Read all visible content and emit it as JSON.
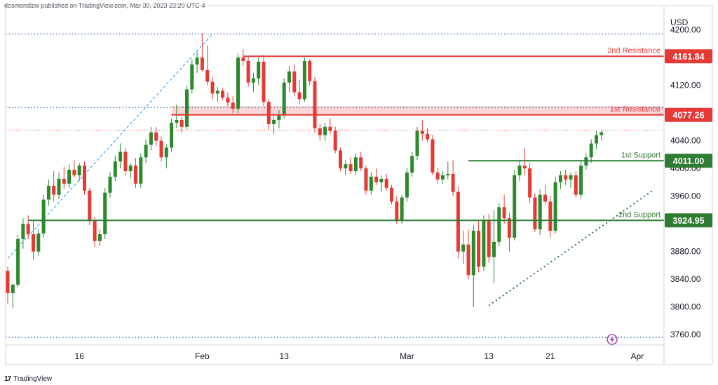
{
  "header": {
    "attribution": "desmondlzw published on TradingView.com, Mar 30, 2023 23:20 UTC-4"
  },
  "footer": {
    "logo": "17",
    "brand": "TradingView"
  },
  "colors": {
    "up": "#2b8a2b",
    "down": "#e53935",
    "resistance": "#e53935",
    "support": "#2e7d32",
    "trendline": "#2196f3",
    "zone": "#f8c8cc"
  },
  "chart_data": {
    "type": "candlestick",
    "currency": "USD",
    "ylim": [
      3745,
      4235
    ],
    "y_ticks": [
      3760,
      3800,
      3840,
      3880,
      3920,
      3960,
      4000,
      4040,
      4080,
      4120,
      4160,
      4200
    ],
    "y_tick_labels": [
      "3760.00",
      "3800.00",
      "3840.00",
      "3880.00",
      "",
      "3960.00",
      "4000.00",
      "4040.00",
      "",
      "4120.00",
      "",
      "4200.00"
    ],
    "x_ticks": [
      {
        "label": "16",
        "bar": 14
      },
      {
        "label": "Feb",
        "bar": 38
      },
      {
        "label": "13",
        "bar": 54
      },
      {
        "label": "Mar",
        "bar": 78
      },
      {
        "label": "13",
        "bar": 94
      },
      {
        "label": "21",
        "bar": 106
      },
      {
        "label": "Apr",
        "bar": 123
      }
    ],
    "levels": [
      {
        "name": "2nd Resistance",
        "value": 4161.84,
        "label": "4161.84",
        "kind": "resistance",
        "from_bar": 46
      },
      {
        "name": "1st Resistance",
        "value": 4077.26,
        "label": "4077.26",
        "kind": "resistance",
        "from_bar": 32,
        "zone_top": 4090
      },
      {
        "name": "1st Support",
        "value": 4011.0,
        "label": "4011.00",
        "kind": "support",
        "from_bar": 90
      },
      {
        "name": "2nd Support",
        "value": 3924.95,
        "label": "3924.95",
        "kind": "support",
        "from_bar": 4
      }
    ],
    "dotted_levels": [
      4194,
      4088,
      3756
    ],
    "current_price_line": 4055,
    "trendlines": [
      {
        "style": "dashed",
        "color": "trendline",
        "from": [
          0,
          3870
        ],
        "to": [
          40,
          4194
        ]
      },
      {
        "style": "dotted",
        "color": "support",
        "from": [
          94,
          3802
        ],
        "to": [
          126,
          3968
        ]
      }
    ],
    "candles": [
      [
        3852,
        3858,
        3805,
        3820
      ],
      [
        3820,
        3834,
        3798,
        3832
      ],
      [
        3832,
        3904,
        3828,
        3898
      ],
      [
        3898,
        3928,
        3884,
        3920
      ],
      [
        3920,
        3932,
        3898,
        3905
      ],
      [
        3905,
        3924,
        3868,
        3880
      ],
      [
        3880,
        3912,
        3874,
        3906
      ],
      [
        3906,
        3962,
        3900,
        3955
      ],
      [
        3955,
        3984,
        3946,
        3975
      ],
      [
        3975,
        3996,
        3952,
        3962
      ],
      [
        3962,
        3994,
        3956,
        3985
      ],
      [
        3985,
        4002,
        3970,
        3978
      ],
      [
        3978,
        4006,
        3972,
        3998
      ],
      [
        3998,
        4012,
        3986,
        3990
      ],
      [
        3990,
        4008,
        3982,
        4004
      ],
      [
        4004,
        4010,
        3962,
        3968
      ],
      [
        3968,
        3972,
        3918,
        3924
      ],
      [
        3924,
        3930,
        3886,
        3895
      ],
      [
        3895,
        3912,
        3888,
        3905
      ],
      [
        3905,
        3972,
        3898,
        3965
      ],
      [
        3965,
        3995,
        3958,
        3988
      ],
      [
        3988,
        4018,
        3982,
        4010
      ],
      [
        4010,
        4036,
        4000,
        4024
      ],
      [
        4024,
        4030,
        3990,
        3996
      ],
      [
        3996,
        4008,
        3986,
        4004
      ],
      [
        4004,
        4015,
        3972,
        3978
      ],
      [
        3978,
        4022,
        3972,
        4016
      ],
      [
        4016,
        4042,
        4008,
        4034
      ],
      [
        4034,
        4060,
        4026,
        4052
      ],
      [
        4052,
        4060,
        4032,
        4040
      ],
      [
        4040,
        4046,
        4010,
        4016
      ],
      [
        4016,
        4034,
        4000,
        4030
      ],
      [
        4030,
        4072,
        4024,
        4066
      ],
      [
        4066,
        4092,
        4058,
        4070
      ],
      [
        4070,
        4074,
        4052,
        4060
      ],
      [
        4060,
        4120,
        4056,
        4114
      ],
      [
        4114,
        4158,
        4108,
        4150
      ],
      [
        4150,
        4168,
        4138,
        4160
      ],
      [
        4160,
        4195,
        4140,
        4142
      ],
      [
        4142,
        4178,
        4120,
        4125
      ],
      [
        4125,
        4132,
        4100,
        4108
      ],
      [
        4108,
        4118,
        4096,
        4112
      ],
      [
        4112,
        4116,
        4098,
        4102
      ],
      [
        4102,
        4110,
        4090,
        4095
      ],
      [
        4095,
        4104,
        4080,
        4086
      ],
      [
        4086,
        4166,
        4080,
        4160
      ],
      [
        4160,
        4172,
        4148,
        4155
      ],
      [
        4155,
        4162,
        4118,
        4124
      ],
      [
        4124,
        4138,
        4110,
        4130
      ],
      [
        4130,
        4160,
        4120,
        4154
      ],
      [
        4154,
        4164,
        4090,
        4096
      ],
      [
        4096,
        4100,
        4056,
        4064
      ],
      [
        4064,
        4076,
        4050,
        4070
      ],
      [
        4070,
        4084,
        4058,
        4078
      ],
      [
        4078,
        4130,
        4072,
        4124
      ],
      [
        4124,
        4148,
        4110,
        4140
      ],
      [
        4140,
        4150,
        4104,
        4110
      ],
      [
        4110,
        4128,
        4092,
        4100
      ],
      [
        4100,
        4160,
        4096,
        4155
      ],
      [
        4155,
        4158,
        4120,
        4126
      ],
      [
        4126,
        4132,
        4052,
        4058
      ],
      [
        4058,
        4064,
        4040,
        4048
      ],
      [
        4048,
        4066,
        4040,
        4060
      ],
      [
        4060,
        4072,
        4050,
        4054
      ],
      [
        4054,
        4060,
        4022,
        4026
      ],
      [
        4026,
        4030,
        3996,
        4000
      ],
      [
        4000,
        4012,
        3990,
        4006
      ],
      [
        4006,
        4016,
        3992,
        3996
      ],
      [
        3996,
        4022,
        3990,
        4016
      ],
      [
        4016,
        4024,
        3996,
        4000
      ],
      [
        4000,
        4004,
        3962,
        3968
      ],
      [
        3968,
        3994,
        3962,
        3988
      ],
      [
        3988,
        4000,
        3976,
        3980
      ],
      [
        3980,
        3990,
        3966,
        3985
      ],
      [
        3985,
        3992,
        3968,
        3972
      ],
      [
        3972,
        3976,
        3948,
        3952
      ],
      [
        3952,
        3960,
        3920,
        3924
      ],
      [
        3924,
        3962,
        3920,
        3958
      ],
      [
        3958,
        4000,
        3952,
        3994
      ],
      [
        3994,
        4024,
        3988,
        4018
      ],
      [
        4018,
        4060,
        4012,
        4054
      ],
      [
        4054,
        4070,
        4040,
        4050
      ],
      [
        4050,
        4058,
        4038,
        4042
      ],
      [
        4042,
        4048,
        3990,
        3994
      ],
      [
        3994,
        4000,
        3978,
        3984
      ],
      [
        3984,
        3996,
        3978,
        3990
      ],
      [
        3990,
        4010,
        3984,
        3992
      ],
      [
        3992,
        4012,
        3960,
        3966
      ],
      [
        3966,
        3974,
        3870,
        3880
      ],
      [
        3880,
        3910,
        3862,
        3890
      ],
      [
        3890,
        3912,
        3840,
        3846
      ],
      [
        3846,
        3918,
        3800,
        3910
      ],
      [
        3910,
        3924,
        3850,
        3858
      ],
      [
        3858,
        3932,
        3852,
        3924
      ],
      [
        3924,
        3934,
        3864,
        3872
      ],
      [
        3872,
        3940,
        3834,
        3894
      ],
      [
        3894,
        3950,
        3888,
        3944
      ],
      [
        3944,
        3962,
        3920,
        3928
      ],
      [
        3928,
        3936,
        3880,
        3900
      ],
      [
        3900,
        3998,
        3896,
        3990
      ],
      [
        3990,
        4012,
        3982,
        4004
      ],
      [
        4004,
        4030,
        3990,
        4000
      ],
      [
        4000,
        4008,
        3950,
        3958
      ],
      [
        3958,
        3964,
        3908,
        3912
      ],
      [
        3912,
        3970,
        3904,
        3962
      ],
      [
        3962,
        3976,
        3948,
        3952
      ],
      [
        3952,
        3960,
        3900,
        3910
      ],
      [
        3910,
        3988,
        3906,
        3980
      ],
      [
        3980,
        3996,
        3970,
        3990
      ],
      [
        3990,
        3998,
        3976,
        3984
      ],
      [
        3984,
        3994,
        3972,
        3990
      ],
      [
        3990,
        3996,
        3958,
        3962
      ],
      [
        3962,
        4010,
        3956,
        4004
      ],
      [
        4004,
        4022,
        3998,
        4016
      ],
      [
        4016,
        4042,
        4008,
        4036
      ],
      [
        4036,
        4054,
        4028,
        4048
      ],
      [
        4048,
        4056,
        4040,
        4052
      ]
    ]
  }
}
